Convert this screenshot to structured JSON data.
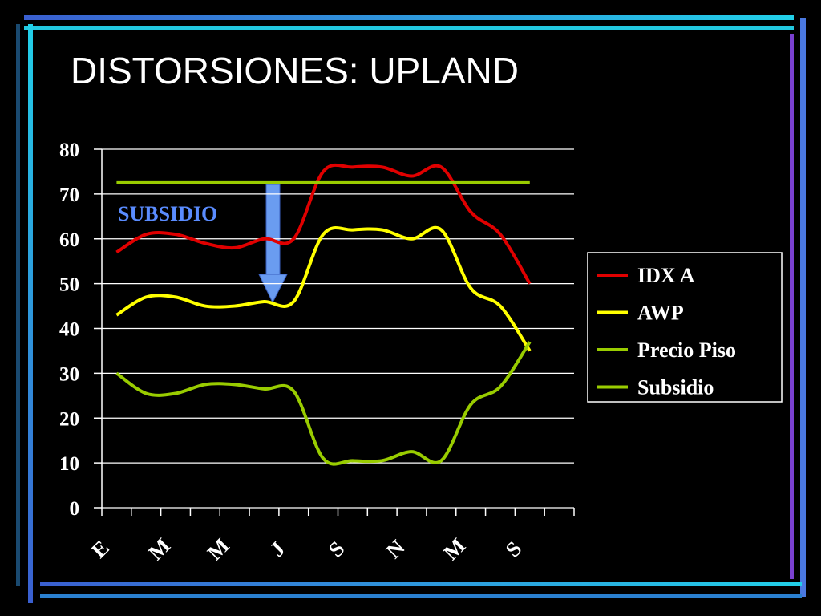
{
  "title": "DISTORSIONES: UPLAND",
  "chart_data": {
    "type": "line",
    "annotation": "SUBSIDIO",
    "categories": [
      "E",
      null,
      "M",
      null,
      "M",
      null,
      "J",
      null,
      "S",
      null,
      "N",
      null,
      "M",
      null,
      "S",
      null
    ],
    "series": [
      {
        "name": "IDX A",
        "color": "#e00000",
        "values": [
          57,
          61,
          61,
          59,
          58,
          60,
          60,
          75,
          76,
          76,
          74,
          76,
          66,
          61,
          50,
          null
        ]
      },
      {
        "name": "AWP",
        "color": "#ffff00",
        "values": [
          43,
          47,
          47,
          45,
          45,
          46,
          46,
          61,
          62,
          62,
          60,
          62,
          49,
          45,
          35,
          null
        ]
      },
      {
        "name": "Precio Piso",
        "color": "#99cc00",
        "values": [
          72.5,
          72.5,
          72.5,
          72.5,
          72.5,
          72.5,
          72.5,
          72.5,
          72.5,
          72.5,
          72.5,
          72.5,
          72.5,
          72.5,
          72.5,
          null
        ]
      },
      {
        "name": "Subsidio",
        "color": "#99cc00",
        "values": [
          30,
          25.5,
          25.5,
          27.5,
          27.5,
          26.5,
          26,
          11,
          10.5,
          10.5,
          12.5,
          10.5,
          23,
          27,
          37,
          null
        ]
      }
    ],
    "ylim": [
      0,
      80
    ],
    "yticks": [
      0,
      10,
      20,
      30,
      40,
      50,
      60,
      70,
      80
    ],
    "grid": true
  }
}
